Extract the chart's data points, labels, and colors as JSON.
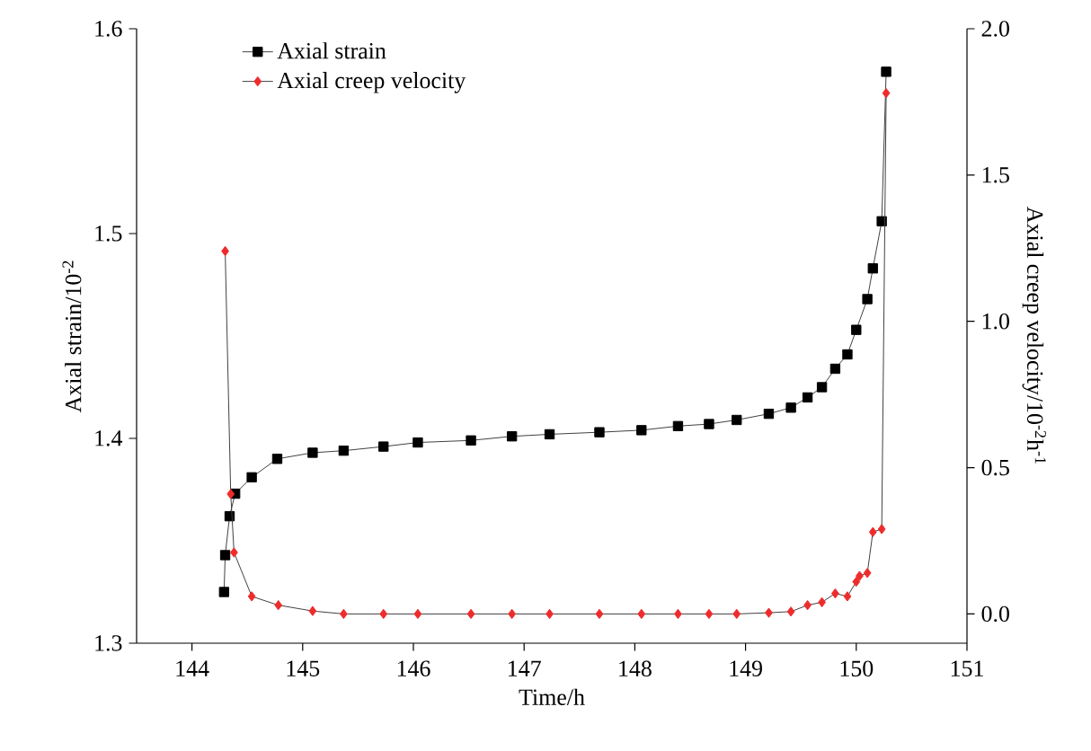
{
  "chart_data": {
    "type": "line",
    "xlabel": "Time/h",
    "ylabel": "Axial strain/10$^{-2}$",
    "y2label": "Axial creep velocity/10$^{-2}$h$^{-1}$",
    "xlim": [
      143.5,
      151
    ],
    "xticks": [
      144,
      145,
      146,
      147,
      148,
      149,
      150,
      151
    ],
    "ylim": [
      1.3,
      1.6
    ],
    "yticks": [
      1.3,
      1.4,
      1.5,
      1.6
    ],
    "y2lim": [
      -0.1,
      2.0
    ],
    "y2ticks": [
      {
        "value": 0,
        "label": "0.0"
      },
      {
        "value": 0.5,
        "label": "0.5"
      },
      {
        "value": 1,
        "label": "1.0"
      },
      {
        "value": 1.5,
        "label": "1.5"
      },
      {
        "value": 2,
        "label": "2.0"
      }
    ],
    "legend": "top left",
    "line_style": "solid",
    "series": [
      {
        "name": "Axial strain",
        "color": "#000000",
        "marker": "square",
        "x": [
          144.29,
          144.3,
          144.34,
          144.39,
          144.54,
          144.77,
          145.09,
          145.37,
          145.73,
          146.04,
          146.52,
          146.89,
          147.23,
          147.68,
          148.06,
          148.39,
          148.67,
          148.92,
          149.21,
          149.41,
          149.56,
          149.69,
          149.81,
          149.92,
          150.0,
          150.1,
          150.15,
          150.23,
          150.27
        ],
        "values": [
          1.325,
          1.343,
          1.362,
          1.373,
          1.381,
          1.39,
          1.393,
          1.394,
          1.396,
          1.398,
          1.399,
          1.401,
          1.402,
          1.403,
          1.404,
          1.406,
          1.407,
          1.409,
          1.412,
          1.415,
          1.42,
          1.425,
          1.434,
          1.441,
          1.453,
          1.468,
          1.483,
          1.506,
          1.579
        ]
      },
      {
        "name": "Axial creep velocity",
        "color": "#ee2c2c",
        "marker": "diamond",
        "axis": "y2",
        "x": [
          144.3,
          144.35,
          144.38,
          144.54,
          144.78,
          145.09,
          145.37,
          145.73,
          146.04,
          146.52,
          146.89,
          147.23,
          147.68,
          148.06,
          148.39,
          148.67,
          148.92,
          149.21,
          149.41,
          149.56,
          149.69,
          149.81,
          149.92,
          150.0,
          150.03,
          150.1,
          150.15,
          150.23,
          150.27
        ],
        "values": [
          1.24,
          0.41,
          0.21,
          0.06,
          0.03,
          0.01,
          0,
          0,
          0,
          0,
          0,
          0,
          0,
          0,
          0,
          0,
          0,
          0.004,
          0.008,
          0.03,
          0.04,
          0.07,
          0.06,
          0.11,
          0.13,
          0.14,
          0.28,
          0.29,
          1.78
        ]
      }
    ]
  }
}
